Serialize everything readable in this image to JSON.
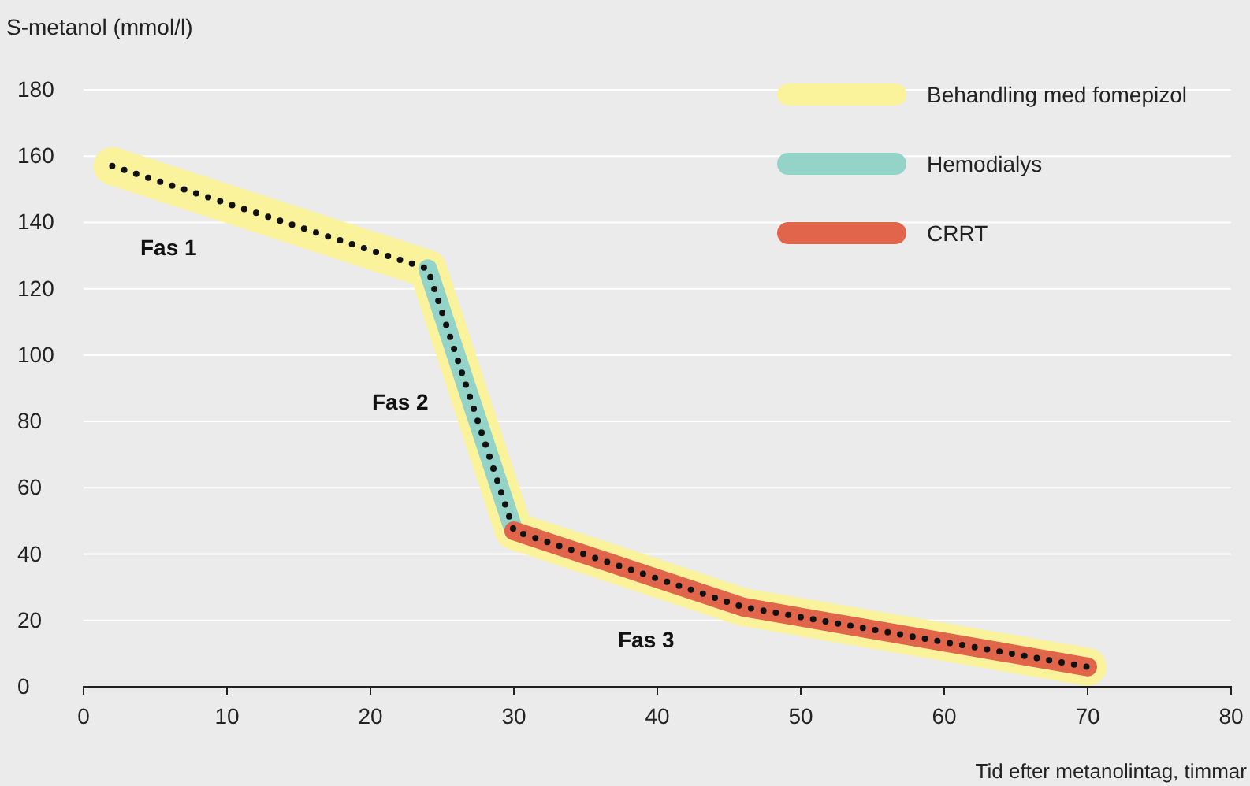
{
  "chart_data": {
    "type": "line",
    "ylabel": "S-metanol (mmol/l)",
    "xlabel": "Tid efter metanolintag, timmar",
    "xlim": [
      0,
      80
    ],
    "xticks": [
      0,
      10,
      20,
      30,
      40,
      50,
      60,
      70,
      80
    ],
    "ylim": [
      0,
      180
    ],
    "yticks": [
      0,
      20,
      40,
      60,
      80,
      100,
      120,
      140,
      160,
      180
    ],
    "grid": "y",
    "legend": "top right",
    "series": [
      {
        "name": "Behandling med fomepizol",
        "color": "#fbf29c",
        "x": [
          2,
          24,
          30,
          46,
          70
        ],
        "values": [
          157,
          126,
          47,
          24,
          6
        ]
      },
      {
        "name": "Hemodialys",
        "color": "#94d3c7",
        "x": [
          24,
          30
        ],
        "values": [
          126,
          47
        ]
      },
      {
        "name": "CRRT",
        "color": "#e0654a",
        "x": [
          30,
          46,
          70
        ],
        "values": [
          47,
          24,
          6
        ]
      },
      {
        "color": "#111111",
        "x": [
          2,
          24,
          30,
          46,
          70
        ],
        "values": [
          157,
          126,
          47,
          24,
          6
        ],
        "line_style": "dotted"
      }
    ],
    "annotations": [
      "Fas 1",
      "Fas 2",
      "Fas 3"
    ]
  }
}
